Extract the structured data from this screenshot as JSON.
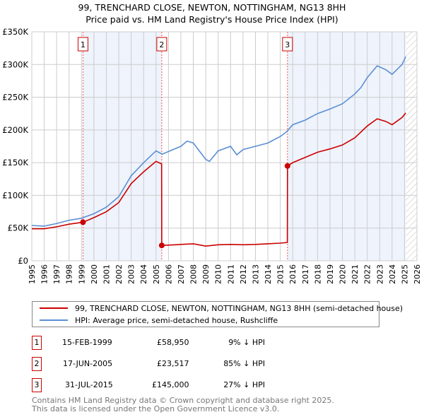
{
  "title": "99, TRENCHARD CLOSE, NEWTON, NOTTINGHAM, NG13 8HH",
  "subtitle": "Price paid vs. HM Land Registry's House Price Index (HPI)",
  "legend": {
    "property": "99, TRENCHARD CLOSE, NEWTON, NOTTINGHAM, NG13 8HH (semi-detached house)",
    "hpi": "HPI: Average price, semi-detached house, Rushcliffe"
  },
  "sales": [
    {
      "num": "1",
      "date": "15-FEB-1999",
      "price": "£58,950",
      "diff": "9% ↓ HPI"
    },
    {
      "num": "2",
      "date": "17-JUN-2005",
      "price": "£23,517",
      "diff": "85% ↓ HPI"
    },
    {
      "num": "3",
      "date": "31-JUL-2015",
      "price": "£145,000",
      "diff": "27% ↓ HPI"
    }
  ],
  "footer": [
    "Contains HM Land Registry data © Crown copyright and database right 2025.",
    "This data is licensed under the Open Government Licence v3.0."
  ],
  "colors": {
    "property": "#cc0000",
    "hpi": "#5b8fd4",
    "band": "#eef3fc"
  },
  "chart_data": {
    "type": "line",
    "xlim": [
      1995,
      2026
    ],
    "ylim": [
      0,
      350000
    ],
    "yticks": [
      0,
      50000,
      100000,
      150000,
      200000,
      250000,
      300000,
      350000
    ],
    "ytick_labels": [
      "£0",
      "£50K",
      "£100K",
      "£150K",
      "£200K",
      "£250K",
      "£300K",
      "£350K"
    ],
    "xticks": [
      1995,
      1996,
      1997,
      1998,
      1999,
      2000,
      2001,
      2002,
      2003,
      2004,
      2005,
      2006,
      2007,
      2008,
      2009,
      2010,
      2011,
      2012,
      2013,
      2014,
      2015,
      2016,
      2017,
      2018,
      2019,
      2020,
      2021,
      2022,
      2023,
      2024,
      2025,
      2026
    ],
    "sale_markers": [
      {
        "label": "1",
        "x": 1999.12,
        "y": 58950
      },
      {
        "label": "2",
        "x": 2005.46,
        "y": 23517
      },
      {
        "label": "3",
        "x": 2015.58,
        "y": 145000
      }
    ],
    "shaded_bands": [
      [
        1999.12,
        2005.46
      ],
      [
        2015.58,
        2025.1
      ]
    ],
    "forecast_hatch_from": 2025.1,
    "series": [
      {
        "name": "HPI: Average price, semi-detached house, Rushcliffe",
        "points": [
          [
            1995,
            54000
          ],
          [
            1996,
            53000
          ],
          [
            1997,
            57000
          ],
          [
            1998,
            62000
          ],
          [
            1999,
            65000
          ],
          [
            2000,
            72000
          ],
          [
            2001,
            82000
          ],
          [
            2002,
            98000
          ],
          [
            2003,
            130000
          ],
          [
            2004,
            150000
          ],
          [
            2005,
            168000
          ],
          [
            2005.5,
            163000
          ],
          [
            2006,
            167000
          ],
          [
            2007,
            175000
          ],
          [
            2007.5,
            183000
          ],
          [
            2008,
            180000
          ],
          [
            2009,
            155000
          ],
          [
            2009.3,
            152000
          ],
          [
            2010,
            168000
          ],
          [
            2011,
            175000
          ],
          [
            2011.5,
            162000
          ],
          [
            2012,
            170000
          ],
          [
            2013,
            175000
          ],
          [
            2014,
            180000
          ],
          [
            2015,
            190000
          ],
          [
            2015.5,
            197000
          ],
          [
            2016,
            208000
          ],
          [
            2017,
            215000
          ],
          [
            2018,
            225000
          ],
          [
            2019,
            232000
          ],
          [
            2020,
            240000
          ],
          [
            2021,
            255000
          ],
          [
            2021.5,
            265000
          ],
          [
            2022,
            280000
          ],
          [
            2022.8,
            298000
          ],
          [
            2023.5,
            292000
          ],
          [
            2024,
            285000
          ],
          [
            2024.8,
            300000
          ],
          [
            2025.1,
            312000
          ]
        ]
      },
      {
        "name": "99, TRENCHARD CLOSE, NEWTON, NOTTINGHAM, NG13 8HH (semi-detached house)",
        "points": [
          [
            1995,
            49000
          ],
          [
            1996,
            49000
          ],
          [
            1997,
            52000
          ],
          [
            1998,
            56000
          ],
          [
            1999.12,
            58950
          ],
          [
            2000,
            66000
          ],
          [
            2001,
            75000
          ],
          [
            2002,
            89000
          ],
          [
            2003,
            118000
          ],
          [
            2004,
            136000
          ],
          [
            2005,
            152000
          ],
          [
            2005.45,
            148000
          ],
          [
            2005.46,
            23517
          ],
          [
            2006,
            24000
          ],
          [
            2007,
            25000
          ],
          [
            2008,
            26000
          ],
          [
            2009,
            22500
          ],
          [
            2010,
            24500
          ],
          [
            2011,
            25000
          ],
          [
            2012,
            24500
          ],
          [
            2013,
            25000
          ],
          [
            2014,
            26000
          ],
          [
            2015,
            27000
          ],
          [
            2015.57,
            28000
          ],
          [
            2015.58,
            145000
          ],
          [
            2016,
            150000
          ],
          [
            2017,
            158000
          ],
          [
            2018,
            166000
          ],
          [
            2019,
            171000
          ],
          [
            2020,
            177000
          ],
          [
            2021,
            188000
          ],
          [
            2022,
            206000
          ],
          [
            2022.8,
            217000
          ],
          [
            2023.5,
            213000
          ],
          [
            2024,
            208000
          ],
          [
            2024.8,
            219000
          ],
          [
            2025.1,
            226000
          ]
        ]
      }
    ]
  }
}
